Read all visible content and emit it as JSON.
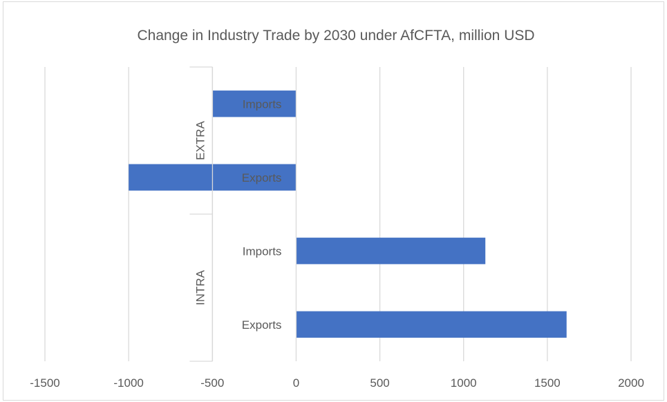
{
  "chart_data": {
    "type": "bar",
    "orientation": "horizontal",
    "title": "Change in Industry Trade by 2030 under AfCFTA, million USD",
    "xlabel": "",
    "ylabel": "",
    "xlim": [
      -1500,
      2000
    ],
    "x_ticks": [
      -1500,
      -1000,
      -500,
      0,
      500,
      1000,
      1500,
      2000
    ],
    "grid": true,
    "legend": "none",
    "bar_color": "#4472c4",
    "groups": [
      {
        "name": "EXTRA",
        "categories": [
          "Imports",
          "Exports"
        ],
        "values": [
          -500,
          -1000
        ]
      },
      {
        "name": "INTRA",
        "categories": [
          "Imports",
          "Exports"
        ],
        "values": [
          1130,
          1615
        ]
      }
    ]
  }
}
